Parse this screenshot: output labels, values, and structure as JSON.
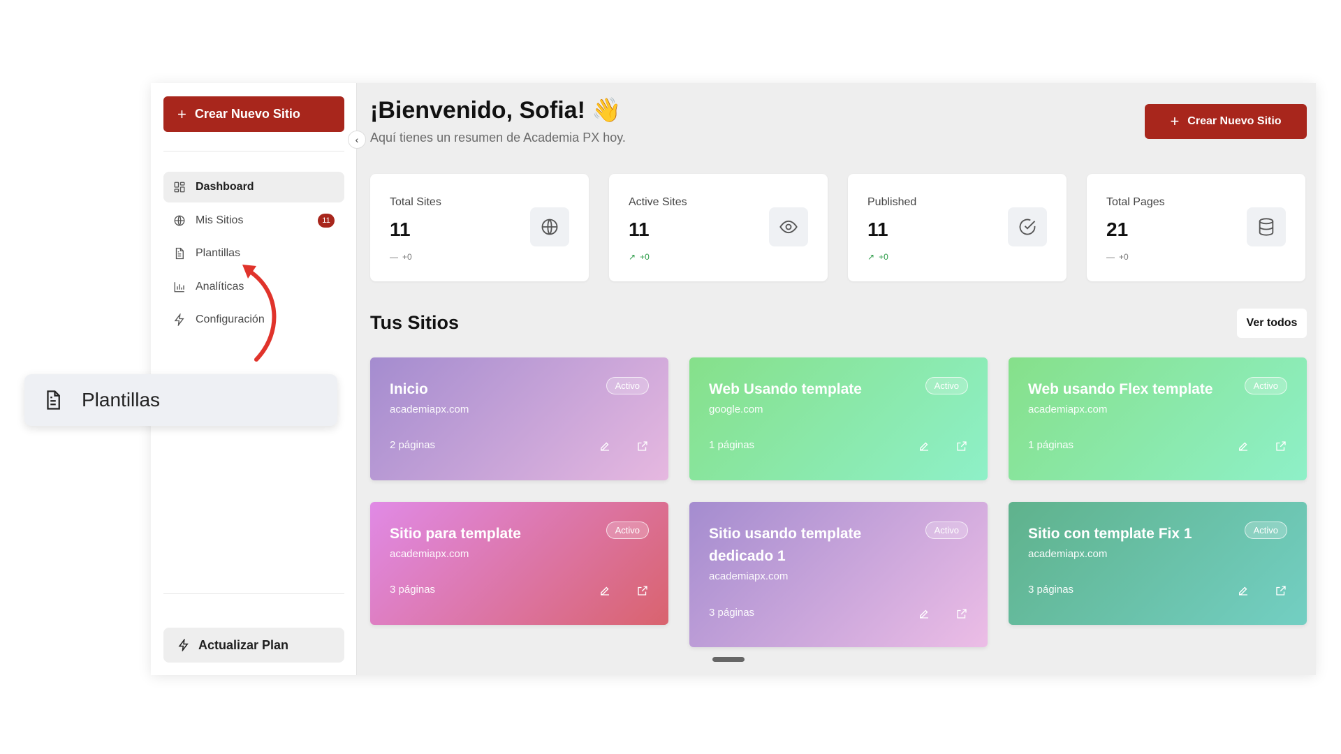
{
  "sidebar": {
    "create_button": "Crear Nuevo Sitio",
    "nav": [
      {
        "label": "Dashboard",
        "icon": "dashboard-icon",
        "active": true
      },
      {
        "label": "Mis Sitios",
        "icon": "globe-icon",
        "badge": "11"
      },
      {
        "label": "Plantillas",
        "icon": "document-icon"
      },
      {
        "label": "Analíticas",
        "icon": "bar-chart-icon"
      },
      {
        "label": "Configuración",
        "icon": "bolt-icon"
      }
    ],
    "upgrade_button": "Actualizar Plan"
  },
  "header": {
    "greeting": "¡Bienvenido, Sofia! 👋",
    "subtitle": "Aquí tienes un resumen de Academia PX hoy.",
    "create_button": "Crear Nuevo Sitio"
  },
  "stats": [
    {
      "label": "Total Sites",
      "value": "11",
      "delta": "+0",
      "trend": "flat",
      "icon": "globe-icon"
    },
    {
      "label": "Active Sites",
      "value": "11",
      "delta": "+0",
      "trend": "up",
      "icon": "eye-icon"
    },
    {
      "label": "Published",
      "value": "11",
      "delta": "+0",
      "trend": "up",
      "icon": "check-circle-icon"
    },
    {
      "label": "Total Pages",
      "value": "21",
      "delta": "+0",
      "trend": "flat",
      "icon": "database-icon"
    }
  ],
  "sites_section": {
    "title": "Tus Sitios",
    "view_all": "Ver todos"
  },
  "sites": [
    {
      "title": "Inicio",
      "domain": "academiapx.com",
      "pages": "2 páginas",
      "status": "Activo"
    },
    {
      "title": "Web Usando template",
      "domain": "google.com",
      "pages": "1 páginas",
      "status": "Activo"
    },
    {
      "title": "Web usando Flex template",
      "domain": "academiapx.com",
      "pages": "1 páginas",
      "status": "Activo"
    },
    {
      "title": "Sitio para template",
      "domain": "academiapx.com",
      "pages": "3 páginas",
      "status": "Activo"
    },
    {
      "title": "Sitio usando template dedicado 1",
      "domain": "academiapx.com",
      "pages": "3 páginas",
      "status": "Activo"
    },
    {
      "title": "Sitio con template Fix 1",
      "domain": "academiapx.com",
      "pages": "3 páginas",
      "status": "Activo"
    }
  ],
  "callout": {
    "label": "Plantillas",
    "icon": "document-icon"
  },
  "colors": {
    "brand": "#a8261c",
    "accent_arrow": "#e0332b",
    "bg": "#eeeeee"
  }
}
